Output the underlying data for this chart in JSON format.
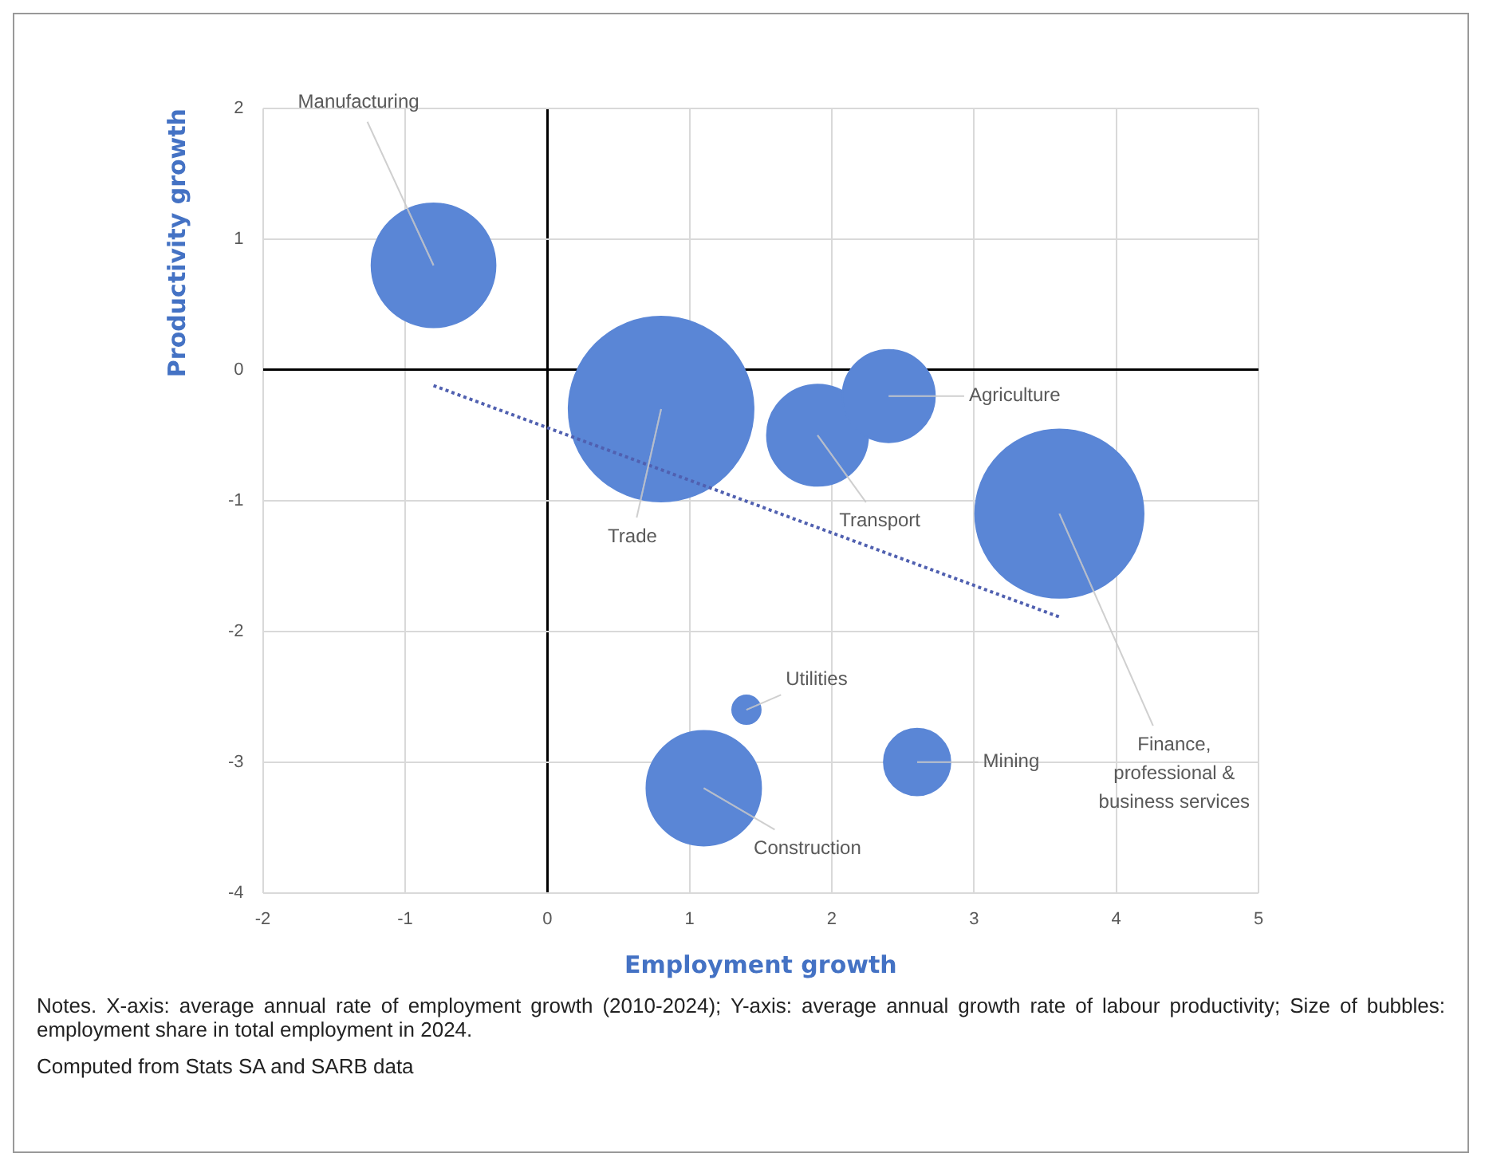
{
  "chart_data": {
    "type": "bubble",
    "xlabel": "Employment growth",
    "ylabel": "Productivity growth",
    "xlim": [
      -2,
      5
    ],
    "xticks": [
      -2,
      -1,
      0,
      1,
      2,
      3,
      4,
      5
    ],
    "ylim": [
      -4,
      2
    ],
    "yticks": [
      -4,
      -3,
      -2,
      -1,
      0,
      1,
      2
    ],
    "grid": true,
    "legend": false,
    "series": [
      {
        "color": "#5a86d6",
        "x": [
          -0.8,
          0.8,
          1.9,
          2.4,
          3.6,
          1.4,
          1.1,
          2.6
        ],
        "values": [
          0.8,
          -0.3,
          -0.5,
          -0.2,
          -1.1,
          -2.6,
          -3.2,
          -3.0
        ],
        "sizes": [
          0.45,
          1,
          0.3,
          0.25,
          0.83,
          0.024,
          0.385,
          0.13
        ]
      },
      {
        "type": "line",
        "color": "#5060b0",
        "line_style": "dotted",
        "marker": "none",
        "x": [
          -0.8,
          3.6
        ],
        "values": [
          -0.12,
          -1.89
        ]
      }
    ],
    "annotations": [
      {
        "text": "Manufacturing",
        "x": -0.8,
        "y": 0.8
      },
      {
        "text": "Trade",
        "x": 0.8,
        "y": -0.3
      },
      {
        "text": "Transport",
        "x": 1.9,
        "y": -0.5
      },
      {
        "text": "Agriculture",
        "x": 2.4,
        "y": -0.2
      },
      {
        "text": "Finance,\nprofessional &\nbusiness services",
        "x": 3.6,
        "y": -1.1
      },
      {
        "text": "Utilities",
        "x": 1.4,
        "y": -2.6
      },
      {
        "text": "Construction",
        "x": 1.1,
        "y": -3.2
      },
      {
        "text": "Mining",
        "x": 2.6,
        "y": -3.0
      },
      "Notes. X-axis: average annual rate of employment growth (2010-2024); Y-axis: average annual growth rate of labour productivity; Size of bubbles: employment share in total employment in 2024.",
      "Computed from Stats SA and SARB data"
    ]
  }
}
